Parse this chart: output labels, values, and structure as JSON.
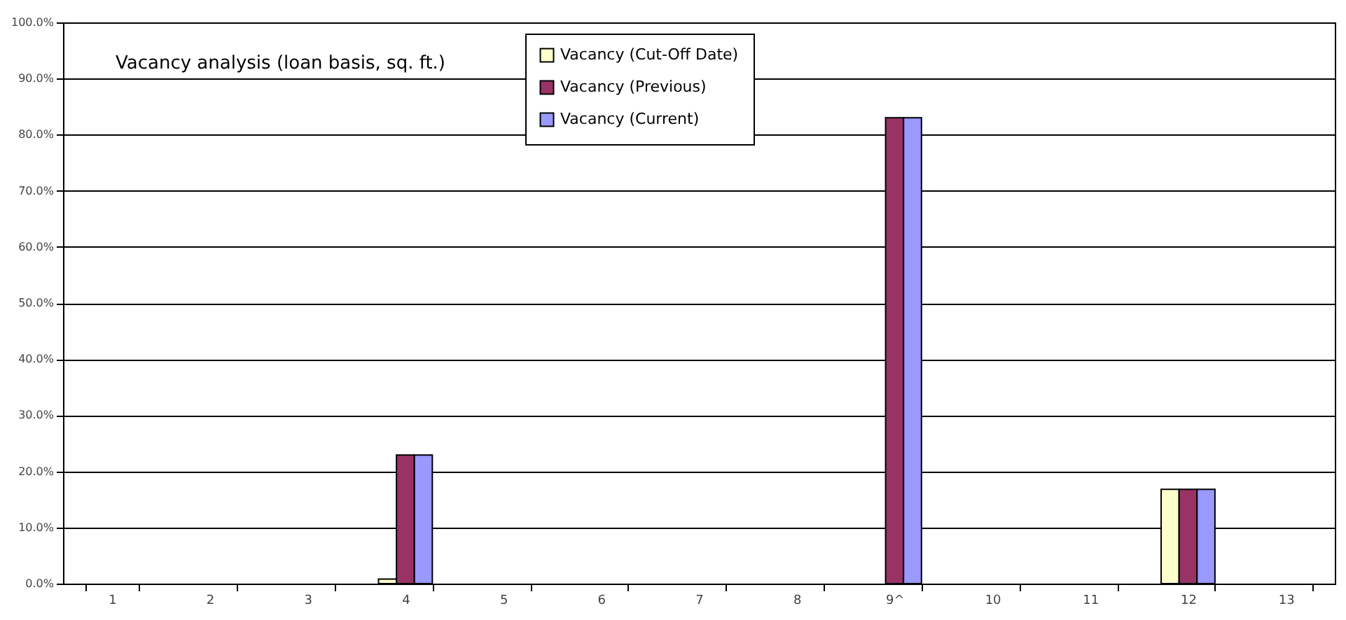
{
  "chart_data": {
    "type": "bar",
    "title": "Vacancy analysis (loan basis, sq. ft.)",
    "categories": [
      "1",
      "2",
      "3",
      "4",
      "5",
      "6",
      "7",
      "8",
      "9^",
      "10",
      "11",
      "12",
      "13"
    ],
    "series": [
      {
        "name": "Vacancy (Cut-Off Date)",
        "color": "#ffffcc",
        "values": [
          null,
          null,
          null,
          0.8,
          null,
          null,
          null,
          null,
          null,
          null,
          null,
          16.8,
          null
        ]
      },
      {
        "name": "Vacancy (Previous)",
        "color": "#993366",
        "values": [
          null,
          null,
          null,
          22.9,
          null,
          null,
          null,
          null,
          83.0,
          null,
          null,
          16.8,
          null
        ]
      },
      {
        "name": "Vacancy (Current)",
        "color": "#9999ff",
        "values": [
          null,
          null,
          null,
          22.9,
          null,
          null,
          null,
          null,
          83.0,
          null,
          null,
          16.8,
          null
        ]
      }
    ],
    "ylim": [
      0,
      100
    ],
    "yticks": [
      {
        "value": 0,
        "label": "0.0%"
      },
      {
        "value": 10,
        "label": "10.0%"
      },
      {
        "value": 20,
        "label": "20.0%"
      },
      {
        "value": 30,
        "label": "30.0%"
      },
      {
        "value": 40,
        "label": "40.0%"
      },
      {
        "value": 50,
        "label": "50.0%"
      },
      {
        "value": 60,
        "label": "60.0%"
      },
      {
        "value": 70,
        "label": "70.0%"
      },
      {
        "value": 80,
        "label": "80.0%"
      },
      {
        "value": 90,
        "label": "90.0%"
      },
      {
        "value": 100,
        "label": "100.0%"
      }
    ],
    "grid": "y",
    "legend": "top"
  }
}
